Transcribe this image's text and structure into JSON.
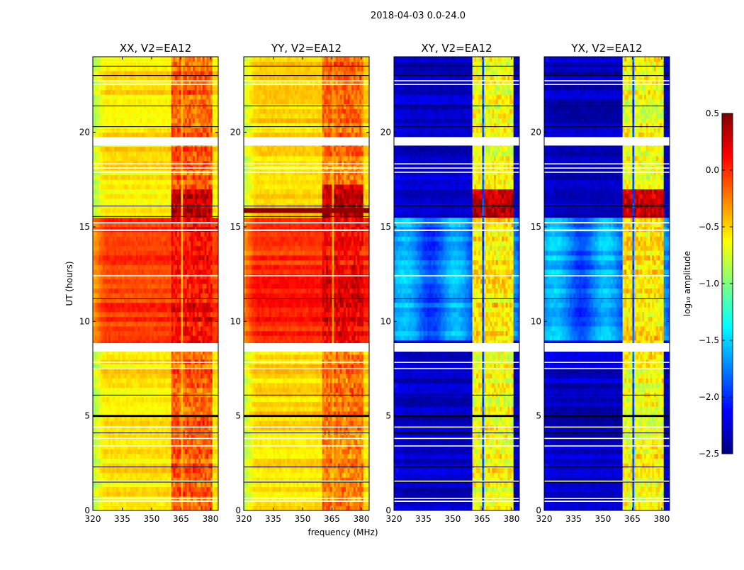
{
  "chart_data": {
    "type": "heatmap",
    "title": "2018-04-03 0.0-24.0",
    "xlabel": "frequency (MHz)",
    "ylabel": "UT (hours)",
    "xlim": [
      320,
      384
    ],
    "ylim": [
      0,
      24
    ],
    "xticks": [
      "320",
      "335",
      "350",
      "365",
      "380"
    ],
    "xtick_values": [
      320,
      335,
      350,
      365,
      380
    ],
    "yticks": [
      "0",
      "5",
      "10",
      "15",
      "20"
    ],
    "ytick_values": [
      0,
      5,
      10,
      15,
      20
    ],
    "colorbar": {
      "label": "log₁₀ amplitude",
      "vmin": -2.5,
      "vmax": 0.5,
      "ticks": [
        "0.5",
        "0.0",
        "−0.5",
        "−1.0",
        "−1.5",
        "−2.0",
        "−2.5"
      ],
      "tick_values": [
        0.5,
        0,
        -0.5,
        -1,
        -1.5,
        -2,
        -2.5
      ],
      "colormap": "jet"
    },
    "band_subbands_mhz": [
      [
        360.5,
        365
      ],
      [
        366,
        370.5
      ],
      [
        371.5,
        375.5
      ],
      [
        376.5,
        380.5
      ]
    ],
    "flagged_hours": [
      [
        8.4,
        8.85
      ],
      [
        19.3,
        19.75
      ],
      [
        0.45,
        0.52
      ],
      [
        0.6,
        0.66
      ],
      [
        1.52,
        1.58
      ],
      [
        3.38,
        3.44
      ],
      [
        3.78,
        3.84
      ],
      [
        4.38,
        4.44
      ],
      [
        7.48,
        7.54
      ],
      [
        7.8,
        7.86
      ],
      [
        12.38,
        12.44
      ],
      [
        14.78,
        14.86
      ],
      [
        15.18,
        15.26
      ],
      [
        17.86,
        17.92
      ],
      [
        18.08,
        18.14
      ],
      [
        18.3,
        18.36
      ],
      [
        22.5,
        22.56
      ],
      [
        22.7,
        22.76
      ]
    ],
    "black_line_hours": [
      1.5,
      2.3,
      4.1,
      6.1,
      11.2,
      16.1,
      20.3,
      21.4,
      23.5,
      23.0,
      15.55
    ],
    "thick_black_line_hours": [
      5.0
    ],
    "panels": [
      {
        "title": "XX, V2=EA12",
        "base": -0.55,
        "edge": -0.85,
        "band": -0.15,
        "gap": -0.4,
        "active_hours": [
          8.8,
          15.5
        ],
        "active_base": -0.05,
        "active_band": 0.1,
        "hot_hours": [
          15.6,
          16.9
        ],
        "hot_band": 0.35,
        "strip_hours": null,
        "strip": null
      },
      {
        "title": "YY, V2=EA12",
        "base": -0.5,
        "edge": -0.8,
        "band": -0.2,
        "gap": -0.35,
        "active_hours": [
          8.8,
          15.5
        ],
        "active_base": 0.0,
        "active_band": 0.15,
        "hot_hours": [
          15.6,
          17.2
        ],
        "hot_band": 0.3,
        "strip_hours": [
          15.75,
          16.0
        ],
        "strip": 0.45
      },
      {
        "title": "XY, V2=EA12",
        "base": -2.3,
        "edge": -2.2,
        "band": -0.65,
        "gap": -1.9,
        "active_hours": [
          8.9,
          15.5
        ],
        "active_base": -1.75,
        "active_band": -0.55,
        "hot_hours": [
          15.6,
          17.1
        ],
        "hot_band": 0.3,
        "strip_hours": null,
        "strip": null
      },
      {
        "title": "YX, V2=EA12",
        "base": -2.3,
        "edge": -2.2,
        "band": -0.65,
        "gap": -1.9,
        "active_hours": [
          8.9,
          15.5
        ],
        "active_base": -1.75,
        "active_band": -0.55,
        "hot_hours": [
          15.6,
          17.1
        ],
        "hot_band": 0.3,
        "strip_hours": null,
        "strip": null
      }
    ]
  }
}
